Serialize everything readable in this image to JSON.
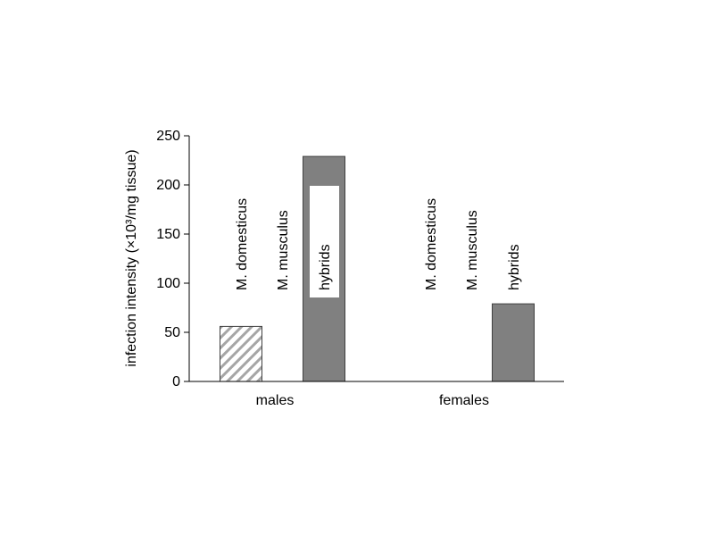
{
  "chart_data": {
    "type": "bar",
    "title": "",
    "xlabel": "",
    "ylabel": "infection intensity (×10³/mg tissue)",
    "ylim": [
      0,
      250
    ],
    "yticks": [
      0,
      50,
      100,
      150,
      200,
      250
    ],
    "grid": false,
    "legend": "none",
    "categories": [
      "males",
      "females"
    ],
    "series": [
      {
        "name": "M. domesticus",
        "values": [
          56,
          0
        ],
        "fill": "hatched",
        "color": "#a6a6a6"
      },
      {
        "name": "M. musculus",
        "values": [
          0,
          0
        ],
        "fill": "none",
        "color": "#ffffff"
      },
      {
        "name": "hybrids",
        "values": [
          229,
          79
        ],
        "fill": "solid",
        "color": "#808080"
      }
    ]
  }
}
